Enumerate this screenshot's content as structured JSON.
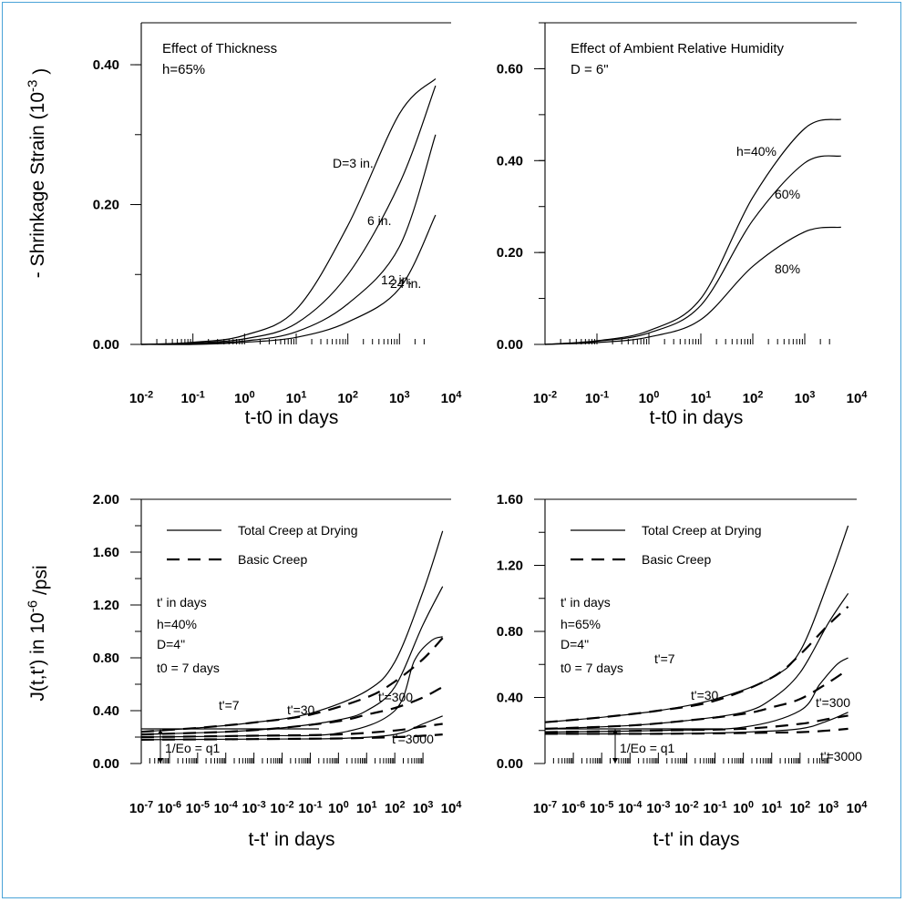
{
  "charts": [
    {
      "id": "shrinkage-thickness",
      "title": "Effect of Thickness",
      "subtitle": "h=65%",
      "ylabel": "- Shrinkage Strain (10^-3 )",
      "xlabel": "t-t0 in days",
      "yticks": [
        "0.00",
        "0.20",
        "0.40"
      ],
      "xticks": [
        "10^-2",
        "10^-1",
        "10^0",
        "10^1",
        "10^2",
        "10^3",
        "10^4"
      ],
      "curve_labels": [
        "D=3 in.",
        "6 in.",
        "12 in.",
        "24 in."
      ]
    },
    {
      "id": "shrinkage-humidity",
      "title": "Effect of Ambient Relative Humidity",
      "subtitle": "D = 6\"",
      "xlabel": "t-t0 in days",
      "yticks": [
        "0.00",
        "0.20",
        "0.40",
        "0.60"
      ],
      "xticks": [
        "10^-2",
        "10^-1",
        "10^0",
        "10^1",
        "10^2",
        "10^3",
        "10^4"
      ],
      "curve_labels": [
        "h=40%",
        "60%",
        "80%"
      ]
    },
    {
      "id": "creep-h40",
      "ylabel": "J(t,t') in 10^-6 /psi",
      "xlabel": "t-t' in days",
      "yticks": [
        "0.00",
        "0.40",
        "0.80",
        "1.20",
        "1.60",
        "2.00"
      ],
      "xticks": [
        "10^-7",
        "10^-6",
        "10^-5",
        "10^-4",
        "10^-3",
        "10^-2",
        "10^-1",
        "10^0",
        "10^1",
        "10^2",
        "10^3",
        "10^4"
      ],
      "legend": [
        "Total Creep at Drying",
        "Basic Creep"
      ],
      "notes": [
        "t' in days",
        "h=40%",
        "D=4\"",
        "t0 = 7 days"
      ],
      "curve_labels": [
        "t'=7",
        "t'=30",
        "t'=300",
        "t'=3000"
      ],
      "q_label": "1/Eo = q1"
    },
    {
      "id": "creep-h65",
      "xlabel": "t-t' in days",
      "yticks": [
        "0.00",
        "0.40",
        "0.80",
        "1.20",
        "1.60"
      ],
      "xticks": [
        "10^-7",
        "10^-6",
        "10^-5",
        "10^-4",
        "10^-3",
        "10^-2",
        "10^-1",
        "10^0",
        "10^1",
        "10^2",
        "10^3",
        "10^4"
      ],
      "legend": [
        "Total Creep at Drying",
        "Basic Creep"
      ],
      "notes": [
        "t' in days",
        "h=65%",
        "D=4\"",
        "t0 = 7 days"
      ],
      "curve_labels": [
        "t'=7",
        "t'=30",
        "t'=300",
        "t'=3000"
      ],
      "q_label": "1/Eo = q1"
    }
  ],
  "chart_data": [
    {
      "type": "line",
      "title": "Effect of Thickness",
      "xlabel": "t-t0 in days",
      "ylabel": "- Shrinkage Strain (10^-3 )",
      "xscale": "log",
      "xlim": [
        0.01,
        10000
      ],
      "ylim": [
        0,
        0.46
      ],
      "grid": false,
      "series": [
        {
          "name": "D=3 in.",
          "x": [
            0.01,
            0.1,
            1,
            10,
            100,
            1000,
            5000
          ],
          "y": [
            0.0,
            0.003,
            0.013,
            0.05,
            0.17,
            0.33,
            0.38
          ]
        },
        {
          "name": "6 in.",
          "x": [
            0.01,
            0.1,
            1,
            10,
            100,
            1000,
            5000
          ],
          "y": [
            0.0,
            0.002,
            0.008,
            0.03,
            0.1,
            0.23,
            0.37
          ]
        },
        {
          "name": "12 in.",
          "x": [
            0.01,
            0.1,
            1,
            10,
            100,
            1000,
            5000
          ],
          "y": [
            0.0,
            0.001,
            0.005,
            0.018,
            0.058,
            0.14,
            0.3
          ]
        },
        {
          "name": "24 in.",
          "x": [
            0.01,
            0.1,
            1,
            10,
            100,
            1000,
            5000
          ],
          "y": [
            0.0,
            0.0,
            0.003,
            0.01,
            0.032,
            0.08,
            0.185
          ]
        }
      ]
    },
    {
      "type": "line",
      "title": "Effect of Ambient Relative Humidity",
      "xlabel": "t-t0 in days",
      "xscale": "log",
      "xlim": [
        0.01,
        10000
      ],
      "ylim": [
        0,
        0.7
      ],
      "grid": false,
      "series": [
        {
          "name": "h=40%",
          "x": [
            0.01,
            0.1,
            1,
            10,
            100,
            1000,
            5000
          ],
          "y": [
            0.0,
            0.008,
            0.03,
            0.1,
            0.32,
            0.47,
            0.49
          ]
        },
        {
          "name": "60%",
          "x": [
            0.01,
            0.1,
            1,
            10,
            100,
            1000,
            5000
          ],
          "y": [
            0.0,
            0.007,
            0.025,
            0.085,
            0.27,
            0.395,
            0.41
          ]
        },
        {
          "name": "80%",
          "x": [
            0.01,
            0.1,
            1,
            10,
            100,
            1000,
            5000
          ],
          "y": [
            0.0,
            0.004,
            0.016,
            0.054,
            0.17,
            0.245,
            0.255
          ]
        }
      ]
    },
    {
      "type": "line",
      "xlabel": "t-t' in days",
      "ylabel": "J(t,t') in 10^-6 /psi",
      "xscale": "log",
      "xlim": [
        1e-07,
        10000
      ],
      "ylim": [
        0,
        2.0
      ],
      "grid": false,
      "series": [
        {
          "name": "t'=7 Total Creep at Drying",
          "x": [
            1e-07,
            1e-05,
            0.001,
            0.1,
            10,
            100,
            1000,
            5000
          ],
          "y": [
            0.24,
            0.27,
            0.31,
            0.38,
            0.55,
            0.77,
            1.3,
            1.76
          ]
        },
        {
          "name": "t'=7 Basic Creep",
          "x": [
            1e-07,
            1e-05,
            0.001,
            0.1,
            10,
            100,
            1000,
            5000
          ],
          "y": [
            0.24,
            0.27,
            0.31,
            0.37,
            0.5,
            0.62,
            0.79,
            0.95
          ]
        },
        {
          "name": "t'=30 Total Creep at Drying",
          "x": [
            1e-07,
            0.0001,
            0.01,
            1,
            10,
            100,
            1000,
            5000
          ],
          "y": [
            0.22,
            0.24,
            0.27,
            0.33,
            0.4,
            0.58,
            1.05,
            1.34
          ]
        },
        {
          "name": "t'=30 Basic Creep",
          "x": [
            1e-07,
            0.0001,
            0.01,
            1,
            10,
            100,
            1000,
            5000
          ],
          "y": [
            0.22,
            0.24,
            0.27,
            0.32,
            0.37,
            0.42,
            0.5,
            0.58
          ]
        },
        {
          "name": "t'=300 Total Creep at Drying",
          "x": [
            1e-07,
            0.001,
            1,
            100,
            500,
            2000,
            5000
          ],
          "y": [
            0.2,
            0.21,
            0.23,
            0.4,
            0.78,
            0.93,
            0.96
          ]
        },
        {
          "name": "t'=300 Basic Creep",
          "x": [
            1e-07,
            0.001,
            1,
            100,
            1000,
            5000
          ],
          "y": [
            0.2,
            0.21,
            0.22,
            0.25,
            0.28,
            0.3
          ]
        },
        {
          "name": "t'=3000 Total Creep at Drying",
          "x": [
            1e-07,
            0.001,
            1,
            100,
            1000,
            5000
          ],
          "y": [
            0.18,
            0.185,
            0.19,
            0.22,
            0.3,
            0.36
          ]
        },
        {
          "name": "t'=3000 Basic Creep",
          "x": [
            1e-07,
            0.001,
            1,
            100,
            1000,
            5000
          ],
          "y": [
            0.18,
            0.185,
            0.19,
            0.2,
            0.21,
            0.22
          ]
        }
      ],
      "annotations": [
        "t' in days",
        "h=40%",
        "D=4\"",
        "t0 = 7 days",
        "1/Eo = q1"
      ]
    },
    {
      "type": "line",
      "xlabel": "t-t' in days",
      "xscale": "log",
      "xlim": [
        1e-07,
        10000
      ],
      "ylim": [
        0,
        1.6
      ],
      "grid": false,
      "series": [
        {
          "name": "t'=7 Total Creep at Drying",
          "x": [
            1e-07,
            1e-05,
            0.001,
            0.1,
            10,
            100,
            1000,
            5000
          ],
          "y": [
            0.25,
            0.28,
            0.32,
            0.39,
            0.52,
            0.68,
            1.1,
            1.44
          ]
        },
        {
          "name": "t'=7 Basic Creep",
          "x": [
            1e-07,
            1e-05,
            0.001,
            0.1,
            10,
            100,
            1000,
            5000
          ],
          "y": [
            0.25,
            0.28,
            0.32,
            0.38,
            0.52,
            0.66,
            0.84,
            0.95
          ]
        },
        {
          "name": "t'=30 Total Creep at Drying",
          "x": [
            1e-07,
            0.0001,
            0.01,
            1,
            10,
            100,
            1000,
            5000
          ],
          "y": [
            0.21,
            0.23,
            0.26,
            0.31,
            0.39,
            0.55,
            0.85,
            1.03
          ]
        },
        {
          "name": "t'=30 Basic Creep",
          "x": [
            1e-07,
            0.0001,
            0.01,
            1,
            10,
            100,
            1000,
            5000
          ],
          "y": [
            0.21,
            0.23,
            0.26,
            0.3,
            0.34,
            0.39,
            0.49,
            0.57
          ]
        },
        {
          "name": "t'=300 Total Creep at Drying",
          "x": [
            1e-07,
            0.001,
            1,
            100,
            500,
            2000,
            5000
          ],
          "y": [
            0.19,
            0.2,
            0.22,
            0.32,
            0.48,
            0.6,
            0.64
          ]
        },
        {
          "name": "t'=300 Basic Creep",
          "x": [
            1e-07,
            0.001,
            1,
            100,
            1000,
            5000
          ],
          "y": [
            0.19,
            0.2,
            0.21,
            0.24,
            0.27,
            0.29
          ]
        },
        {
          "name": "t'=3000 Total Creep at Drying",
          "x": [
            1e-07,
            0.001,
            1,
            100,
            1000,
            5000
          ],
          "y": [
            0.18,
            0.18,
            0.19,
            0.21,
            0.26,
            0.31
          ]
        },
        {
          "name": "t'=3000 Basic Creep",
          "x": [
            1e-07,
            0.001,
            1,
            100,
            1000,
            5000
          ],
          "y": [
            0.18,
            0.18,
            0.185,
            0.19,
            0.2,
            0.21
          ]
        }
      ],
      "annotations": [
        "t' in days",
        "h=65%",
        "D=4\"",
        "t0 = 7 days",
        "1/Eo = q1"
      ]
    }
  ]
}
